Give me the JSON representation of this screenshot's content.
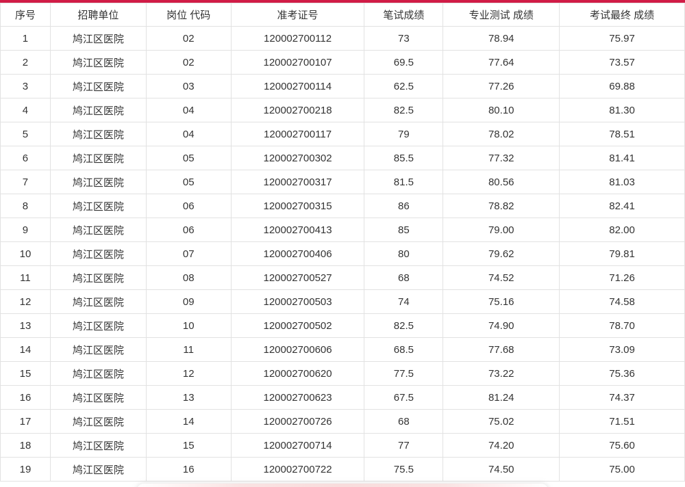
{
  "accent_color": "#d11c46",
  "table": {
    "headers": [
      "序号",
      "招聘单位",
      "岗位 代码",
      "准考证号",
      "笔试成绩",
      "专业测试 成绩",
      "考试最终 成绩"
    ],
    "rows": [
      [
        "1",
        "鸠江区医院",
        "02",
        "120002700112",
        "73",
        "78.94",
        "75.97"
      ],
      [
        "2",
        "鸠江区医院",
        "02",
        "120002700107",
        "69.5",
        "77.64",
        "73.57"
      ],
      [
        "3",
        "鸠江区医院",
        "03",
        "120002700114",
        "62.5",
        "77.26",
        "69.88"
      ],
      [
        "4",
        "鸠江区医院",
        "04",
        "120002700218",
        "82.5",
        "80.10",
        "81.30"
      ],
      [
        "5",
        "鸠江区医院",
        "04",
        "120002700117",
        "79",
        "78.02",
        "78.51"
      ],
      [
        "6",
        "鸠江区医院",
        "05",
        "120002700302",
        "85.5",
        "77.32",
        "81.41"
      ],
      [
        "7",
        "鸠江区医院",
        "05",
        "120002700317",
        "81.5",
        "80.56",
        "81.03"
      ],
      [
        "8",
        "鸠江区医院",
        "06",
        "120002700315",
        "86",
        "78.82",
        "82.41"
      ],
      [
        "9",
        "鸠江区医院",
        "06",
        "120002700413",
        "85",
        "79.00",
        "82.00"
      ],
      [
        "10",
        "鸠江区医院",
        "07",
        "120002700406",
        "80",
        "79.62",
        "79.81"
      ],
      [
        "11",
        "鸠江区医院",
        "08",
        "120002700527",
        "68",
        "74.52",
        "71.26"
      ],
      [
        "12",
        "鸠江区医院",
        "09",
        "120002700503",
        "74",
        "75.16",
        "74.58"
      ],
      [
        "13",
        "鸠江区医院",
        "10",
        "120002700502",
        "82.5",
        "74.90",
        "78.70"
      ],
      [
        "14",
        "鸠江区医院",
        "11",
        "120002700606",
        "68.5",
        "77.68",
        "73.09"
      ],
      [
        "15",
        "鸠江区医院",
        "12",
        "120002700620",
        "77.5",
        "73.22",
        "75.36"
      ],
      [
        "16",
        "鸠江区医院",
        "13",
        "120002700623",
        "67.5",
        "81.24",
        "74.37"
      ],
      [
        "17",
        "鸠江区医院",
        "14",
        "120002700726",
        "68",
        "75.02",
        "71.51"
      ],
      [
        "18",
        "鸠江区医院",
        "15",
        "120002700714",
        "77",
        "74.20",
        "75.60"
      ],
      [
        "19",
        "鸠江区医院",
        "16",
        "120002700722",
        "75.5",
        "74.50",
        "75.00"
      ]
    ],
    "column_widths_pct": [
      7.3,
      14.0,
      12.4,
      19.5,
      11.5,
      17.0,
      18.3
    ]
  }
}
